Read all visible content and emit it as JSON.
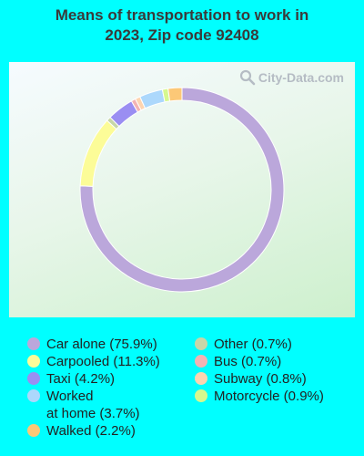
{
  "title_lines": [
    "Means of transportation to work in",
    "2023, Zip code 92408"
  ],
  "watermark": "City-Data.com",
  "chart_data": {
    "type": "pie",
    "subtype": "donut",
    "title": "Means of transportation to work in 2023, Zip code 92408",
    "slices": [
      {
        "label": "Car alone (75.9%)",
        "value": 75.9,
        "color": "#bba7db"
      },
      {
        "label": "Carpooled (11.3%)",
        "value": 11.3,
        "color": "#fcfc98"
      },
      {
        "label": "Other (0.7%)",
        "value": 0.7,
        "color": "#c7d6a8"
      },
      {
        "label": "Taxi (4.2%)",
        "value": 4.2,
        "color": "#9a8ef2"
      },
      {
        "label": "Bus (0.7%)",
        "value": 0.7,
        "color": "#f3b3b3"
      },
      {
        "label": "Subway (0.8%)",
        "value": 0.8,
        "color": "#fdd4b0"
      },
      {
        "label": "Worked\nat home (3.7%)",
        "value": 3.7,
        "color": "#acd8fc"
      },
      {
        "label": "Motorcycle (0.9%)",
        "value": 0.9,
        "color": "#d6f88e"
      },
      {
        "label": "Walked (2.2%)",
        "value": 2.2,
        "color": "#fcc877"
      }
    ],
    "legend_placement": "bottom"
  },
  "legend": [
    {
      "label": "Car alone (75.9%)",
      "color": "#bba7db"
    },
    {
      "label": "Carpooled (11.3%)",
      "color": "#fcfc98"
    },
    {
      "label": "Taxi (4.2%)",
      "color": "#9a8ef2"
    },
    {
      "label": "Worked\nat home (3.7%)",
      "color": "#acd8fc"
    },
    {
      "label": "Walked (2.2%)",
      "color": "#fcc877"
    },
    {
      "label": "Other (0.7%)",
      "color": "#c7d6a8"
    },
    {
      "label": "Bus (0.7%)",
      "color": "#f3b3b3"
    },
    {
      "label": "Subway (0.8%)",
      "color": "#fdd4b0"
    },
    {
      "label": "Motorcycle (0.9%)",
      "color": "#d6f88e"
    }
  ]
}
